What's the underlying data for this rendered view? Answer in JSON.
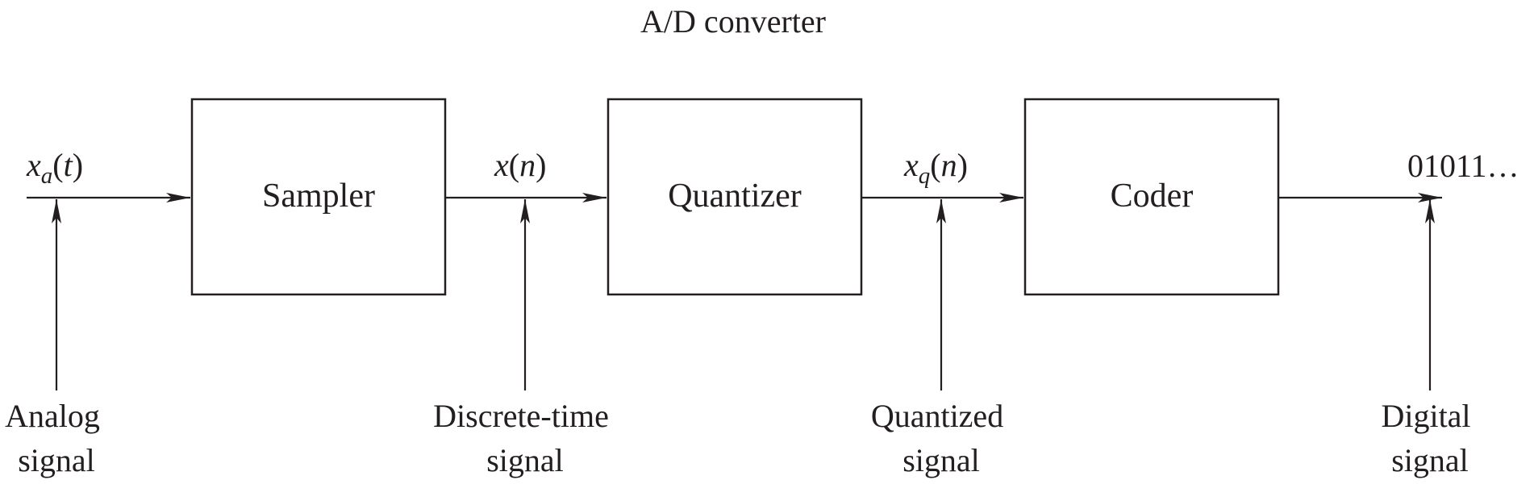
{
  "title": "A/D converter",
  "blocks": {
    "sampler": "Sampler",
    "quantizer": "Quantizer",
    "coder": "Coder"
  },
  "signals": {
    "analog_input": {
      "base": "x",
      "sub": "a",
      "arg": "t"
    },
    "discrete": {
      "base": "x",
      "arg": "n"
    },
    "quantized": {
      "base": "x",
      "sub": "q",
      "arg": "n"
    },
    "digital_output": "01011…"
  },
  "captions": {
    "analog": [
      "Analog",
      "signal"
    ],
    "discrete": [
      "Discrete-time",
      "signal"
    ],
    "quantized": [
      "Quantized",
      "signal"
    ],
    "digital": [
      "Digital",
      "signal"
    ]
  }
}
